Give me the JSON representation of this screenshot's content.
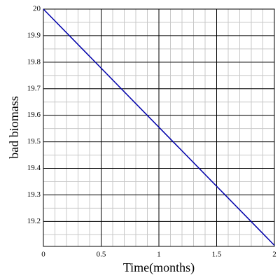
{
  "chart_data": {
    "type": "line",
    "xlabel": "Time(months)",
    "ylabel": "bad biomass",
    "x": [
      0,
      2
    ],
    "series": [
      {
        "color": "#0000aa",
        "values": [
          20,
          19.11
        ]
      }
    ],
    "xlim": [
      0,
      2
    ],
    "xticks": [
      0,
      0.5,
      1,
      1.5,
      2
    ],
    "ylim": [
      19.106,
      20
    ],
    "yticks": [
      19.2,
      19.3,
      19.4,
      19.5,
      19.6,
      19.7,
      19.8,
      19.9,
      20
    ],
    "grid": true
  }
}
